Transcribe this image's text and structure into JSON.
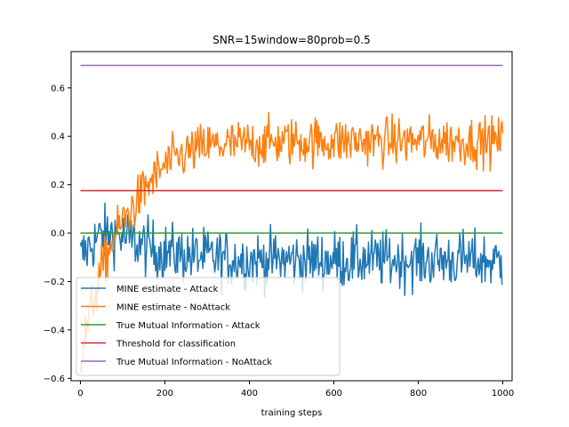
{
  "chart_data": {
    "type": "line",
    "title": "SNR=15window=80prob=0.5",
    "xlabel": "training steps",
    "ylabel": "",
    "xlim": [
      -22,
      1022
    ],
    "ylim": [
      -0.61,
      0.75
    ],
    "xticks": [
      0,
      200,
      400,
      600,
      800,
      1000
    ],
    "yticks": [
      -0.6,
      -0.4,
      -0.2,
      0.0,
      0.2,
      0.4,
      0.6
    ],
    "xtick_labels": [
      "0",
      "200",
      "400",
      "600",
      "800",
      "1000"
    ],
    "ytick_labels": [
      "−0.6",
      "−0.4",
      "−0.2",
      "0.0",
      "0.2",
      "0.4",
      "0.6"
    ],
    "legend_position": "lower-left",
    "series": [
      {
        "name": "MINE estimate - Attack",
        "color": "#1f77b4",
        "kind": "noisy",
        "x": [
          0,
          40,
          80,
          120,
          160,
          200,
          300,
          400,
          500,
          600,
          700,
          800,
          900,
          1000
        ],
        "values": [
          -0.1,
          -0.02,
          0.0,
          -0.03,
          -0.06,
          -0.08,
          -0.1,
          -0.11,
          -0.11,
          -0.11,
          -0.11,
          -0.11,
          -0.11,
          -0.12
        ],
        "noise": 0.06
      },
      {
        "name": "MINE estimate - NoAttack",
        "color": "#ff7f0e",
        "kind": "noisy",
        "x": [
          0,
          20,
          50,
          80,
          100,
          130,
          160,
          200,
          250,
          300,
          400,
          500,
          600,
          700,
          800,
          900,
          1000
        ],
        "values": [
          -0.52,
          -0.35,
          -0.15,
          -0.02,
          0.05,
          0.12,
          0.2,
          0.28,
          0.33,
          0.36,
          0.37,
          0.38,
          0.38,
          0.38,
          0.38,
          0.38,
          0.38
        ],
        "noise": 0.05
      },
      {
        "name": "True Mutual Information - Attack",
        "color": "#2ca02c",
        "kind": "constant",
        "x": [
          0,
          1000
        ],
        "values": [
          0.0,
          0.0
        ]
      },
      {
        "name": "Threshold for classification",
        "color": "#d62728",
        "kind": "constant",
        "x": [
          0,
          1000
        ],
        "values": [
          0.175,
          0.175
        ]
      },
      {
        "name": "True Mutual Information - NoAttack",
        "color": "#9467bd",
        "kind": "constant",
        "x": [
          0,
          1000
        ],
        "values": [
          0.693,
          0.693
        ]
      }
    ]
  }
}
